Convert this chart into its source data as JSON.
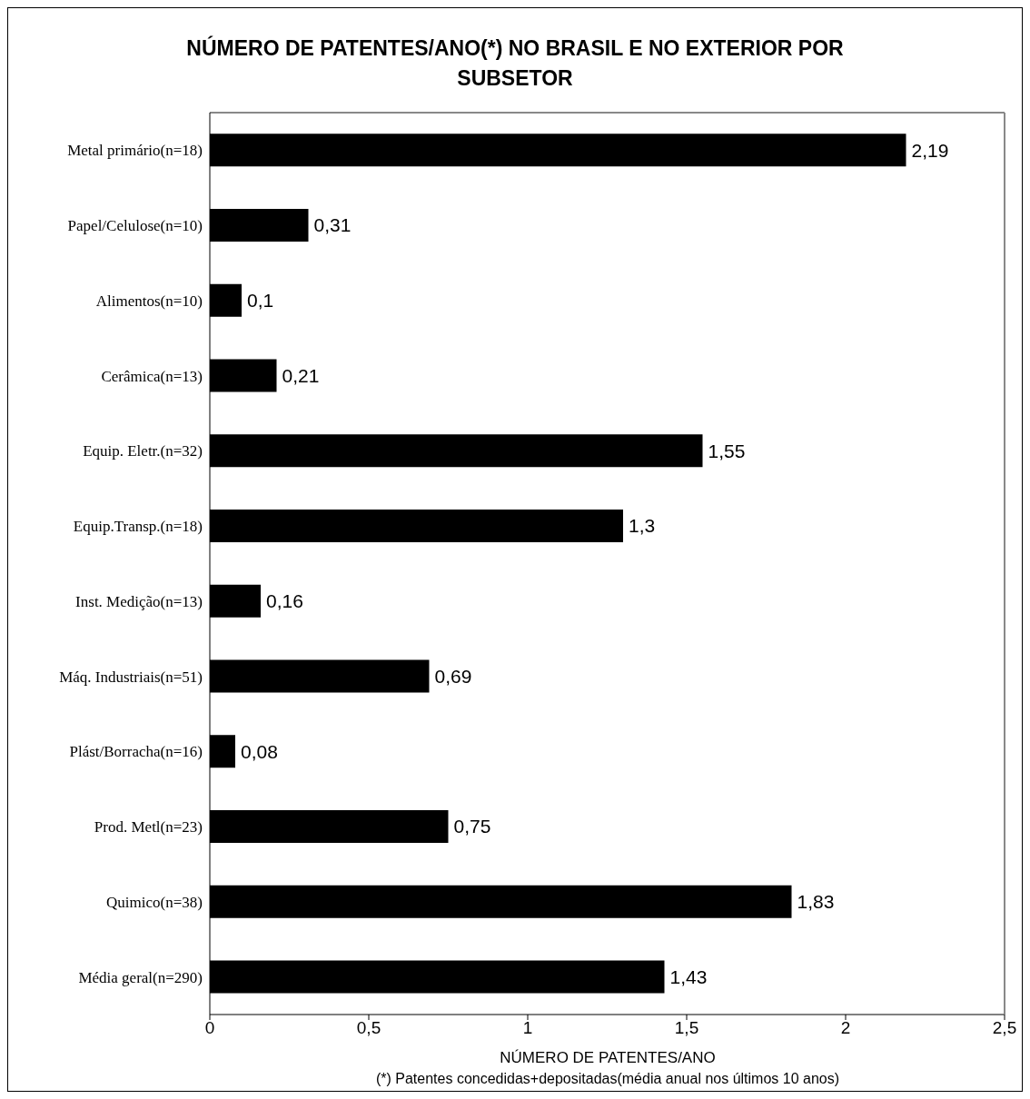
{
  "chart_data": {
    "type": "bar",
    "orientation": "horizontal",
    "title": "NÚMERO DE PATENTES/ANO(*) NO BRASIL E NO EXTERIOR POR SUBSETOR",
    "xlabel": "NÚMERO DE PATENTES/ANO",
    "annotations": [
      "(*) Patentes concedidas+depositadas(média anual nos últimos 10 anos)"
    ],
    "categories": [
      "Metal primário(n=18)",
      "Papel/Celulose(n=10)",
      "Alimentos(n=10)",
      "Cerâmica(n=13)",
      "Equip. Eletr.(n=32)",
      "Equip.Transp.(n=18)",
      "Inst. Medição(n=13)",
      "Máq. Industriais(n=51)",
      "Plást/Borracha(n=16)",
      "Prod. Metl(n=23)",
      "Quimico(n=38)",
      "Média geral(n=290)"
    ],
    "values": [
      2.19,
      0.31,
      0.1,
      0.21,
      1.55,
      1.3,
      0.16,
      0.69,
      0.08,
      0.75,
      1.83,
      1.43
    ],
    "value_labels": [
      "2,19",
      "0,31",
      "0,1",
      "0,21",
      "1,55",
      "1,3",
      "0,16",
      "0,69",
      "0,08",
      "0,75",
      "1,83",
      "1,43"
    ],
    "color": "#000000",
    "xlim": [
      0,
      2.5
    ],
    "xticks": [
      0,
      {
        "value": 0.5,
        "label": "0,5"
      },
      1,
      {
        "value": 1.5,
        "label": "1,5"
      },
      2,
      {
        "value": 2.5,
        "label": "2,5"
      }
    ],
    "grid": false
  }
}
